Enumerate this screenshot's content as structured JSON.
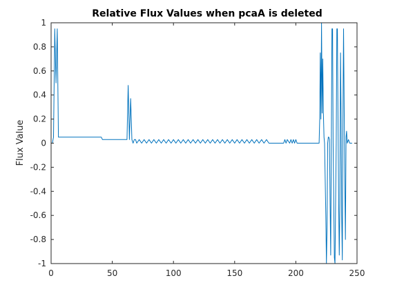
{
  "chart_data": {
    "type": "line",
    "title": "Relative Flux Values when pcaA is deleted",
    "xlabel": "",
    "ylabel": "Flux Value",
    "xlim": [
      0,
      250
    ],
    "ylim": [
      -1,
      1
    ],
    "grid": false,
    "x_ticks": [
      0,
      50,
      100,
      150,
      200,
      250
    ],
    "x_tick_labels": [
      "0",
      "50",
      "100",
      "150",
      "200",
      "250"
    ],
    "y_ticks": [
      1,
      0.8,
      0.6,
      0.4,
      0.2,
      0,
      -0.2,
      -0.4,
      -0.6,
      -0.8,
      -1
    ],
    "y_tick_labels": [
      "1",
      "0.8",
      "0.6",
      "0.4",
      "0.2",
      "0",
      "-0.2",
      "-0.4",
      "-0.6",
      "-0.8",
      "-1"
    ],
    "colors": {
      "line": "#0072bd",
      "axes": "#262626",
      "background": "#ffffff"
    },
    "series": [
      {
        "x": [
          1,
          2,
          3,
          4,
          5,
          6,
          7,
          41,
          42,
          62,
          63,
          64,
          65,
          66,
          67,
          68,
          69,
          70,
          72,
          74,
          76,
          78,
          80,
          82,
          84,
          86,
          88,
          90,
          92,
          94,
          96,
          98,
          100,
          102,
          104,
          106,
          108,
          110,
          112,
          114,
          116,
          118,
          120,
          122,
          124,
          126,
          128,
          130,
          132,
          134,
          136,
          138,
          140,
          142,
          144,
          146,
          148,
          150,
          152,
          154,
          156,
          158,
          160,
          162,
          164,
          166,
          168,
          170,
          172,
          174,
          176,
          178,
          179,
          190,
          191,
          192,
          193,
          195,
          196,
          197,
          198,
          199,
          200,
          201,
          202,
          203,
          219,
          219.5,
          220,
          220.5,
          221,
          221.5,
          222,
          222.5,
          223,
          223.5,
          224,
          224.5,
          225,
          225.5,
          226,
          226.5,
          227,
          227.5,
          228,
          228.5,
          229,
          229.5,
          230,
          230.5,
          231,
          231.5,
          232,
          232.5,
          233,
          233.5,
          234,
          234.5,
          235,
          235.5,
          236,
          236.5,
          237,
          237.5,
          238,
          238.5,
          239,
          239.5,
          240,
          240.5,
          241,
          241.5,
          242,
          243,
          244,
          245,
          246
        ],
        "values": [
          0,
          0.05,
          0.95,
          0.5,
          0.95,
          0.05,
          0.05,
          0.05,
          0.03,
          0.03,
          0.48,
          0.03,
          0.37,
          0.03,
          0,
          0.03,
          0.03,
          0,
          0.03,
          0,
          0.03,
          0,
          0.03,
          0,
          0.03,
          0,
          0.03,
          0,
          0.03,
          0,
          0.03,
          0,
          0.03,
          0,
          0.03,
          0,
          0.03,
          0,
          0.03,
          0,
          0.03,
          0,
          0.03,
          0,
          0.03,
          0,
          0.03,
          0,
          0.03,
          0,
          0.03,
          0,
          0.03,
          0,
          0.03,
          0,
          0.03,
          0,
          0.03,
          0,
          0.03,
          0,
          0.03,
          0,
          0.03,
          0,
          0.03,
          0,
          0.03,
          0,
          0.03,
          0,
          0,
          0,
          0.03,
          0,
          0.03,
          0,
          0.03,
          0,
          0.03,
          0,
          0.03,
          0,
          0,
          0,
          0,
          0.2,
          0.75,
          0.2,
          1,
          0.25,
          0.7,
          0.25,
          0.05,
          0,
          -0.3,
          -0.6,
          -1,
          -0.7,
          0,
          0.05,
          0.05,
          0.03,
          -0.5,
          -0.93,
          0,
          0.95,
          0.95,
          0,
          -0.5,
          -0.95,
          -1,
          -0.5,
          0,
          0.95,
          0.95,
          0.2,
          -0.5,
          -0.93,
          -0.5,
          0.75,
          0.2,
          -0.6,
          -0.97,
          0.2,
          0.95,
          0.3,
          -0.3,
          -0.8,
          0.05,
          0.1,
          0,
          0.03,
          0,
          0,
          0
        ]
      }
    ]
  }
}
